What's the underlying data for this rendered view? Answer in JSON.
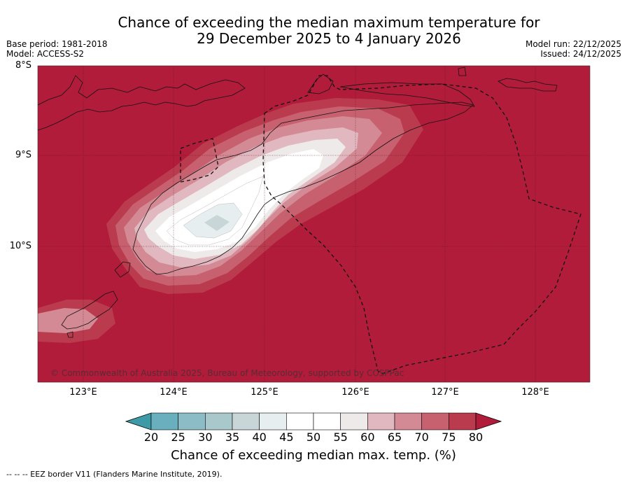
{
  "title": {
    "line1": "Chance of exceeding the median maximum temperature for",
    "line2": "29 December 2025 to 4 January 2026"
  },
  "meta_left": {
    "base_period": "Base period: 1981-2018",
    "model": "Model: ACCESS-S2"
  },
  "meta_right": {
    "model_run": "Model run: 22/12/2025",
    "issued": "Issued: 24/12/2025"
  },
  "latitude_labels": [
    "8°S",
    "9°S",
    "10°S"
  ],
  "longitude_labels": [
    "123°E",
    "124°E",
    "125°E",
    "126°E",
    "127°E",
    "128°E"
  ],
  "copyright": "© Commonwealth of Australia 2025, Bureau of Meteorology, supported by COSPPac",
  "colorbar": {
    "ticks": [
      "20",
      "25",
      "30",
      "35",
      "40",
      "45",
      "50",
      "55",
      "60",
      "65",
      "70",
      "75",
      "80"
    ],
    "colors": [
      "#3f9aa8",
      "#6aafbd",
      "#8cbcc6",
      "#a9c8cc",
      "#c8d6d8",
      "#e6eeef",
      "#ffffff",
      "#ffffff",
      "#efeaea",
      "#e1b8bf",
      "#d38a94",
      "#c7616f",
      "#bb3b4e",
      "#b01c3a"
    ],
    "label": "Chance of exceeding median max. temp. (%)"
  },
  "map_colors": {
    "c80": "#b01c3a",
    "c75": "#bb3b4e",
    "c70": "#c7616f",
    "c65": "#d38a94",
    "c60": "#e1b8bf",
    "c55": "#efeaea",
    "c50": "#ffffff",
    "c40": "#e6eeef",
    "c35": "#c8d6d8"
  },
  "footnote": "--  --  -- EEZ border V11 (Flanders Marine Institute, 2019)."
}
